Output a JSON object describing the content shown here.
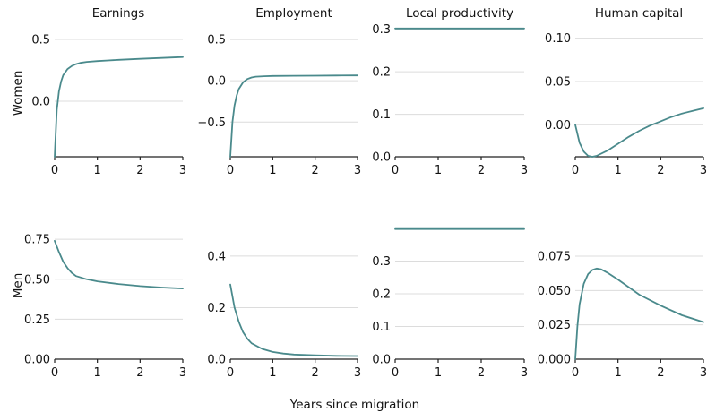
{
  "figure": {
    "column_titles": [
      "Earnings",
      "Employment",
      "Local productivity",
      "Human capital"
    ],
    "row_labels": [
      "Women",
      "Men"
    ],
    "xlabel": "Years since migration"
  },
  "colors": {
    "line": "#4a8a8c",
    "grid": "#dcdcdc",
    "axis": "#222222"
  },
  "chart_data": [
    {
      "type": "line",
      "row": "Women",
      "column": "Earnings",
      "xlim": [
        0,
        3
      ],
      "ylim": [
        -0.45,
        0.58
      ],
      "xticks": [
        0,
        1,
        2,
        3
      ],
      "xtick_labels": [
        "0",
        "1",
        "2",
        "3"
      ],
      "yticks": [
        0.0,
        0.5
      ],
      "ytick_labels": [
        "0.0",
        "0.5"
      ],
      "grid": true,
      "series": [
        {
          "x": [
            0,
            0.05,
            0.1,
            0.15,
            0.2,
            0.3,
            0.4,
            0.5,
            0.6,
            0.75,
            1.0,
            1.25,
            1.5,
            2.0,
            2.5,
            3.0
          ],
          "values": [
            -0.45,
            -0.07,
            0.08,
            0.16,
            0.21,
            0.26,
            0.285,
            0.3,
            0.31,
            0.318,
            0.325,
            0.33,
            0.335,
            0.343,
            0.35,
            0.357
          ]
        }
      ]
    },
    {
      "type": "line",
      "row": "Women",
      "column": "Employment",
      "xlim": [
        0,
        3
      ],
      "ylim": [
        -0.92,
        0.62
      ],
      "xticks": [
        0,
        1,
        2,
        3
      ],
      "xtick_labels": [
        "0",
        "1",
        "2",
        "3"
      ],
      "yticks": [
        -0.5,
        0.0,
        0.5
      ],
      "ytick_labels": [
        "−0.5",
        "0.0",
        "0.5"
      ],
      "grid": true,
      "series": [
        {
          "x": [
            0,
            0.05,
            0.1,
            0.15,
            0.2,
            0.3,
            0.4,
            0.5,
            0.6,
            0.8,
            1.0,
            1.5,
            2.0,
            2.5,
            3.0
          ],
          "values": [
            -0.92,
            -0.5,
            -0.3,
            -0.18,
            -0.1,
            -0.02,
            0.02,
            0.04,
            0.05,
            0.055,
            0.058,
            0.06,
            0.062,
            0.064,
            0.065
          ]
        }
      ]
    },
    {
      "type": "line",
      "row": "Women",
      "column": "Local productivity",
      "xlim": [
        0,
        3
      ],
      "ylim": [
        0.0,
        0.31
      ],
      "xticks": [
        0,
        1,
        2,
        3
      ],
      "xtick_labels": [
        "0",
        "1",
        "2",
        "3"
      ],
      "yticks": [
        0.0,
        0.1,
        0.2,
        0.3
      ],
      "ytick_labels": [
        "0.0",
        "0.1",
        "0.2",
        "0.3"
      ],
      "grid": true,
      "series": [
        {
          "x": [
            0,
            3
          ],
          "values": [
            0.302,
            0.302
          ]
        }
      ]
    },
    {
      "type": "line",
      "row": "Women",
      "column": "Human capital",
      "xlim": [
        0,
        3
      ],
      "ylim": [
        -0.037,
        0.11
      ],
      "xticks": [
        0,
        1,
        2,
        3
      ],
      "xtick_labels": [
        "0",
        "1",
        "2",
        "3"
      ],
      "yticks": [
        0.0,
        0.05,
        0.1
      ],
      "ytick_labels": [
        "0.00",
        "0.05",
        "0.10"
      ],
      "grid": true,
      "series": [
        {
          "x": [
            0,
            0.1,
            0.2,
            0.3,
            0.4,
            0.5,
            0.75,
            1.0,
            1.25,
            1.5,
            1.75,
            2.0,
            2.25,
            2.5,
            2.75,
            3.0
          ],
          "values": [
            0.0,
            -0.021,
            -0.031,
            -0.036,
            -0.037,
            -0.036,
            -0.03,
            -0.022,
            -0.014,
            -0.007,
            -0.001,
            0.004,
            0.009,
            0.013,
            0.016,
            0.019
          ]
        }
      ]
    },
    {
      "type": "line",
      "row": "Men",
      "column": "Earnings",
      "xlim": [
        0,
        3
      ],
      "ylim": [
        0.0,
        0.79
      ],
      "xticks": [
        0,
        1,
        2,
        3
      ],
      "xtick_labels": [
        "0",
        "1",
        "2",
        "3"
      ],
      "yticks": [
        0.0,
        0.25,
        0.5,
        0.75
      ],
      "ytick_labels": [
        "0.00",
        "0.25",
        "0.50",
        "0.75"
      ],
      "grid": true,
      "series": [
        {
          "x": [
            0,
            0.1,
            0.2,
            0.3,
            0.4,
            0.5,
            0.75,
            1.0,
            1.5,
            2.0,
            2.5,
            3.0
          ],
          "values": [
            0.74,
            0.67,
            0.61,
            0.57,
            0.54,
            0.52,
            0.5,
            0.487,
            0.47,
            0.457,
            0.448,
            0.442
          ]
        }
      ]
    },
    {
      "type": "line",
      "row": "Men",
      "column": "Employment",
      "xlim": [
        0,
        3
      ],
      "ylim": [
        0.0,
        0.49
      ],
      "xticks": [
        0,
        1,
        2,
        3
      ],
      "xtick_labels": [
        "0",
        "1",
        "2",
        "3"
      ],
      "yticks": [
        0.0,
        0.2,
        0.4
      ],
      "ytick_labels": [
        "0.0",
        "0.2",
        "0.4"
      ],
      "grid": true,
      "series": [
        {
          "x": [
            0,
            0.1,
            0.2,
            0.3,
            0.4,
            0.5,
            0.75,
            1.0,
            1.25,
            1.5,
            2.0,
            2.5,
            3.0
          ],
          "values": [
            0.29,
            0.2,
            0.145,
            0.105,
            0.08,
            0.062,
            0.04,
            0.028,
            0.022,
            0.018,
            0.015,
            0.013,
            0.012
          ]
        }
      ]
    },
    {
      "type": "line",
      "row": "Men",
      "column": "Local productivity",
      "xlim": [
        0,
        3
      ],
      "ylim": [
        0.0,
        0.4
      ],
      "xticks": [
        0,
        1,
        2,
        3
      ],
      "xtick_labels": [
        "0",
        "1",
        "2",
        "3"
      ],
      "yticks": [
        0.0,
        0.1,
        0.2,
        0.3
      ],
      "ytick_labels": [
        "0.0",
        "0.1",
        "0.2",
        "0.3"
      ],
      "grid": true,
      "series": [
        {
          "x": [
            0,
            3
          ],
          "values": [
            0.398,
            0.398
          ]
        }
      ]
    },
    {
      "type": "line",
      "row": "Men",
      "column": "Human capital",
      "xlim": [
        0,
        3
      ],
      "ylim": [
        0.0,
        0.092
      ],
      "xticks": [
        0,
        1,
        2,
        3
      ],
      "xtick_labels": [
        "0",
        "1",
        "2",
        "3"
      ],
      "yticks": [
        0.0,
        0.025,
        0.05,
        0.075
      ],
      "ytick_labels": [
        "0.000",
        "0.025",
        "0.050",
        "0.075"
      ],
      "grid": true,
      "series": [
        {
          "x": [
            0,
            0.05,
            0.1,
            0.2,
            0.3,
            0.4,
            0.5,
            0.6,
            0.75,
            1.0,
            1.5,
            2.0,
            2.5,
            3.0
          ],
          "values": [
            0.0,
            0.024,
            0.04,
            0.055,
            0.062,
            0.065,
            0.066,
            0.0655,
            0.063,
            0.058,
            0.047,
            0.039,
            0.032,
            0.027
          ]
        }
      ]
    }
  ]
}
